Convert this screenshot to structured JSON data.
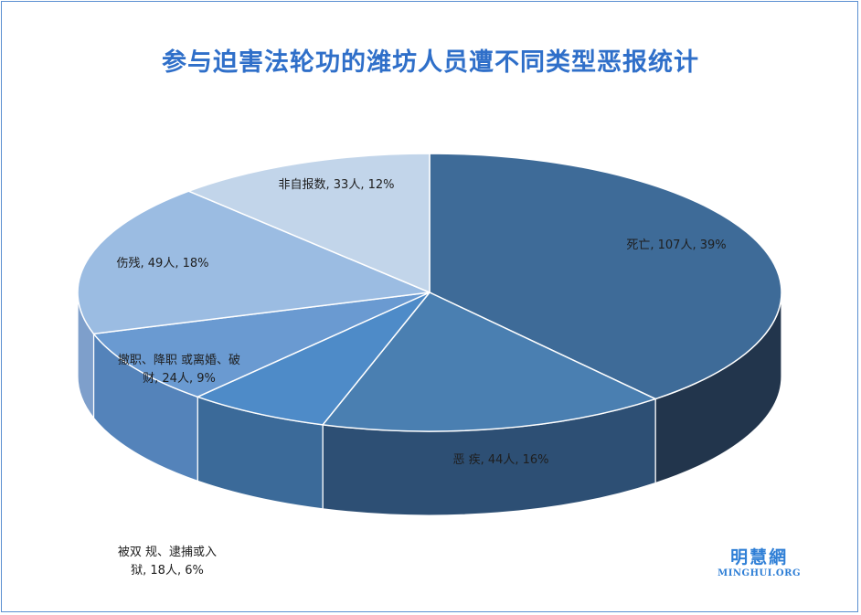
{
  "chart_data": {
    "type": "pie",
    "title": "参与迫害法轮功的潍坊人员遭不同类型恶报统计",
    "slices": [
      {
        "label": "死亡",
        "value": 107,
        "percent": 39,
        "color": "#3e6b98",
        "side_color": "#22354c"
      },
      {
        "label": "恶 疾",
        "value": 44,
        "percent": 16,
        "color": "#4a7fb1",
        "side_color": "#2d4f74"
      },
      {
        "label": "被双 规、逮捕或入狱",
        "value": 18,
        "percent": 6,
        "color": "#4e8bc8",
        "side_color": "#3b6a99"
      },
      {
        "label": "撤职、降职 或离婚、破财",
        "value": 24,
        "percent": 9,
        "color": "#6a9ad1",
        "side_color": "#5483ba"
      },
      {
        "label": "伤残",
        "value": 49,
        "percent": 18,
        "color": "#9bbce2",
        "side_color": "#7e9fcb"
      },
      {
        "label": "非自报数",
        "value": 33,
        "percent": 12,
        "color": "#c2d5ea",
        "side_color": "#a3b9d3"
      }
    ],
    "label_lines": {
      "死亡": [
        "死亡, 107人, 39%"
      ],
      "恶 疾": [
        "恶 疾, 44人, 16%"
      ],
      "被双 规、逮捕或入狱": [
        "被双 规、逮捕或入",
        "狱, 18人, 6%"
      ],
      "撤职、降职 或离婚、破财": [
        "撤职、降职 或离婚、破",
        "财, 24人, 9%"
      ],
      "伤残": [
        "伤残, 49人, 18%"
      ],
      "非自报数": [
        "非自报数, 33人, 12%"
      ]
    }
  },
  "logo": {
    "chinese": "明慧網",
    "english": "MINGHUI.ORG"
  }
}
